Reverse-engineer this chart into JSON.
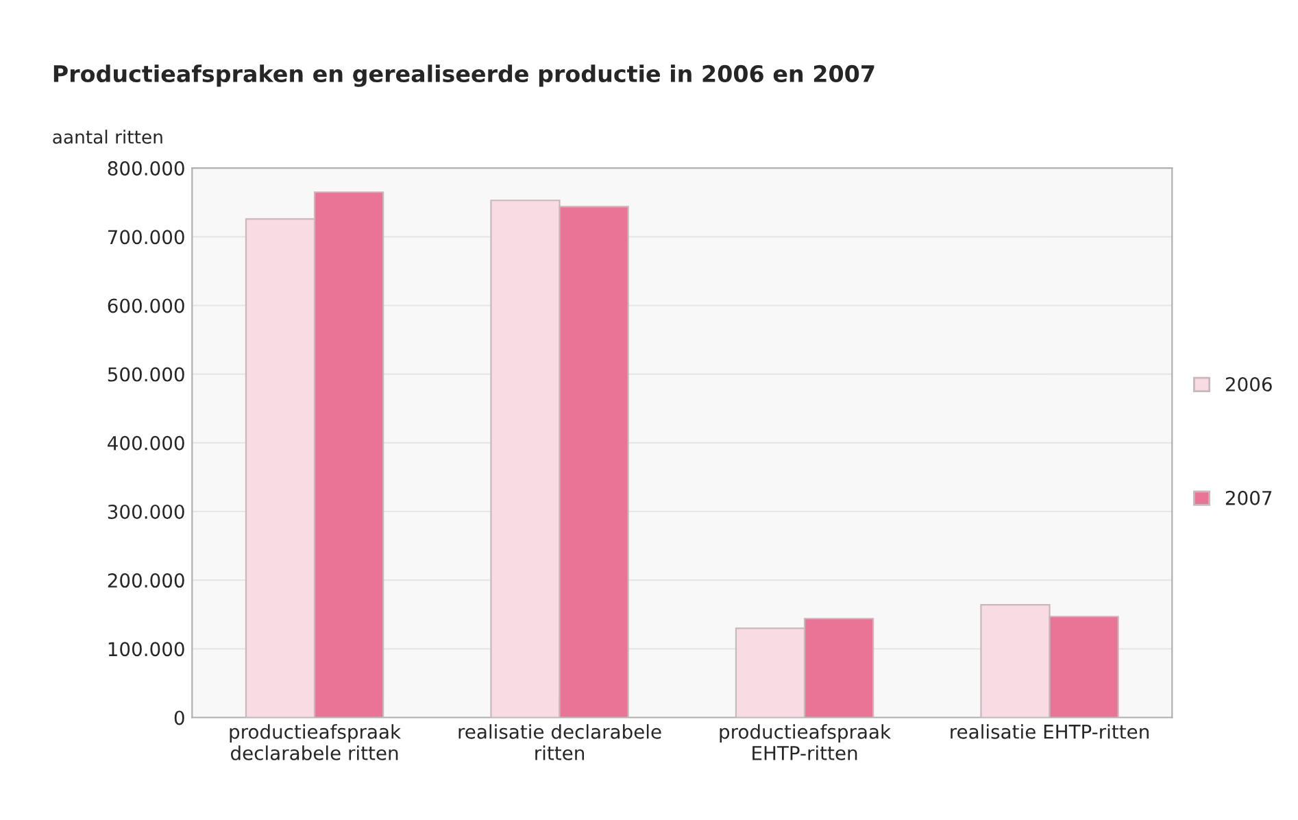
{
  "chart_data": {
    "type": "bar",
    "title": "Productieafspraken en gerealiseerde productie in 2006 en 2007",
    "ylabel": "aantal ritten",
    "categories": [
      "productieafspraak\ndeclarabele ritten",
      "realisatie declarabele\nritten",
      "productieafspraak\nEHTP-ritten",
      "realisatie EHTP-ritten"
    ],
    "series": [
      {
        "name": "2006",
        "color": "#f9dbe3",
        "values": [
          726000,
          753000,
          130000,
          164000
        ]
      },
      {
        "name": "2007",
        "color": "#e97496",
        "values": [
          765000,
          744000,
          144000,
          147000
        ]
      }
    ],
    "ylim": [
      0,
      800000
    ],
    "yticks": [
      0,
      {
        "value": 100000,
        "label": "100.000"
      },
      {
        "value": 200000,
        "label": "200.000"
      },
      {
        "value": 300000,
        "label": "300.000"
      },
      {
        "value": 400000,
        "label": "400.000"
      },
      {
        "value": 500000,
        "label": "500.000"
      },
      {
        "value": 600000,
        "label": "600.000"
      },
      {
        "value": 700000,
        "label": "700.000"
      },
      {
        "value": 800000,
        "label": "800.000"
      }
    ],
    "grid": "y",
    "legend": "right"
  }
}
